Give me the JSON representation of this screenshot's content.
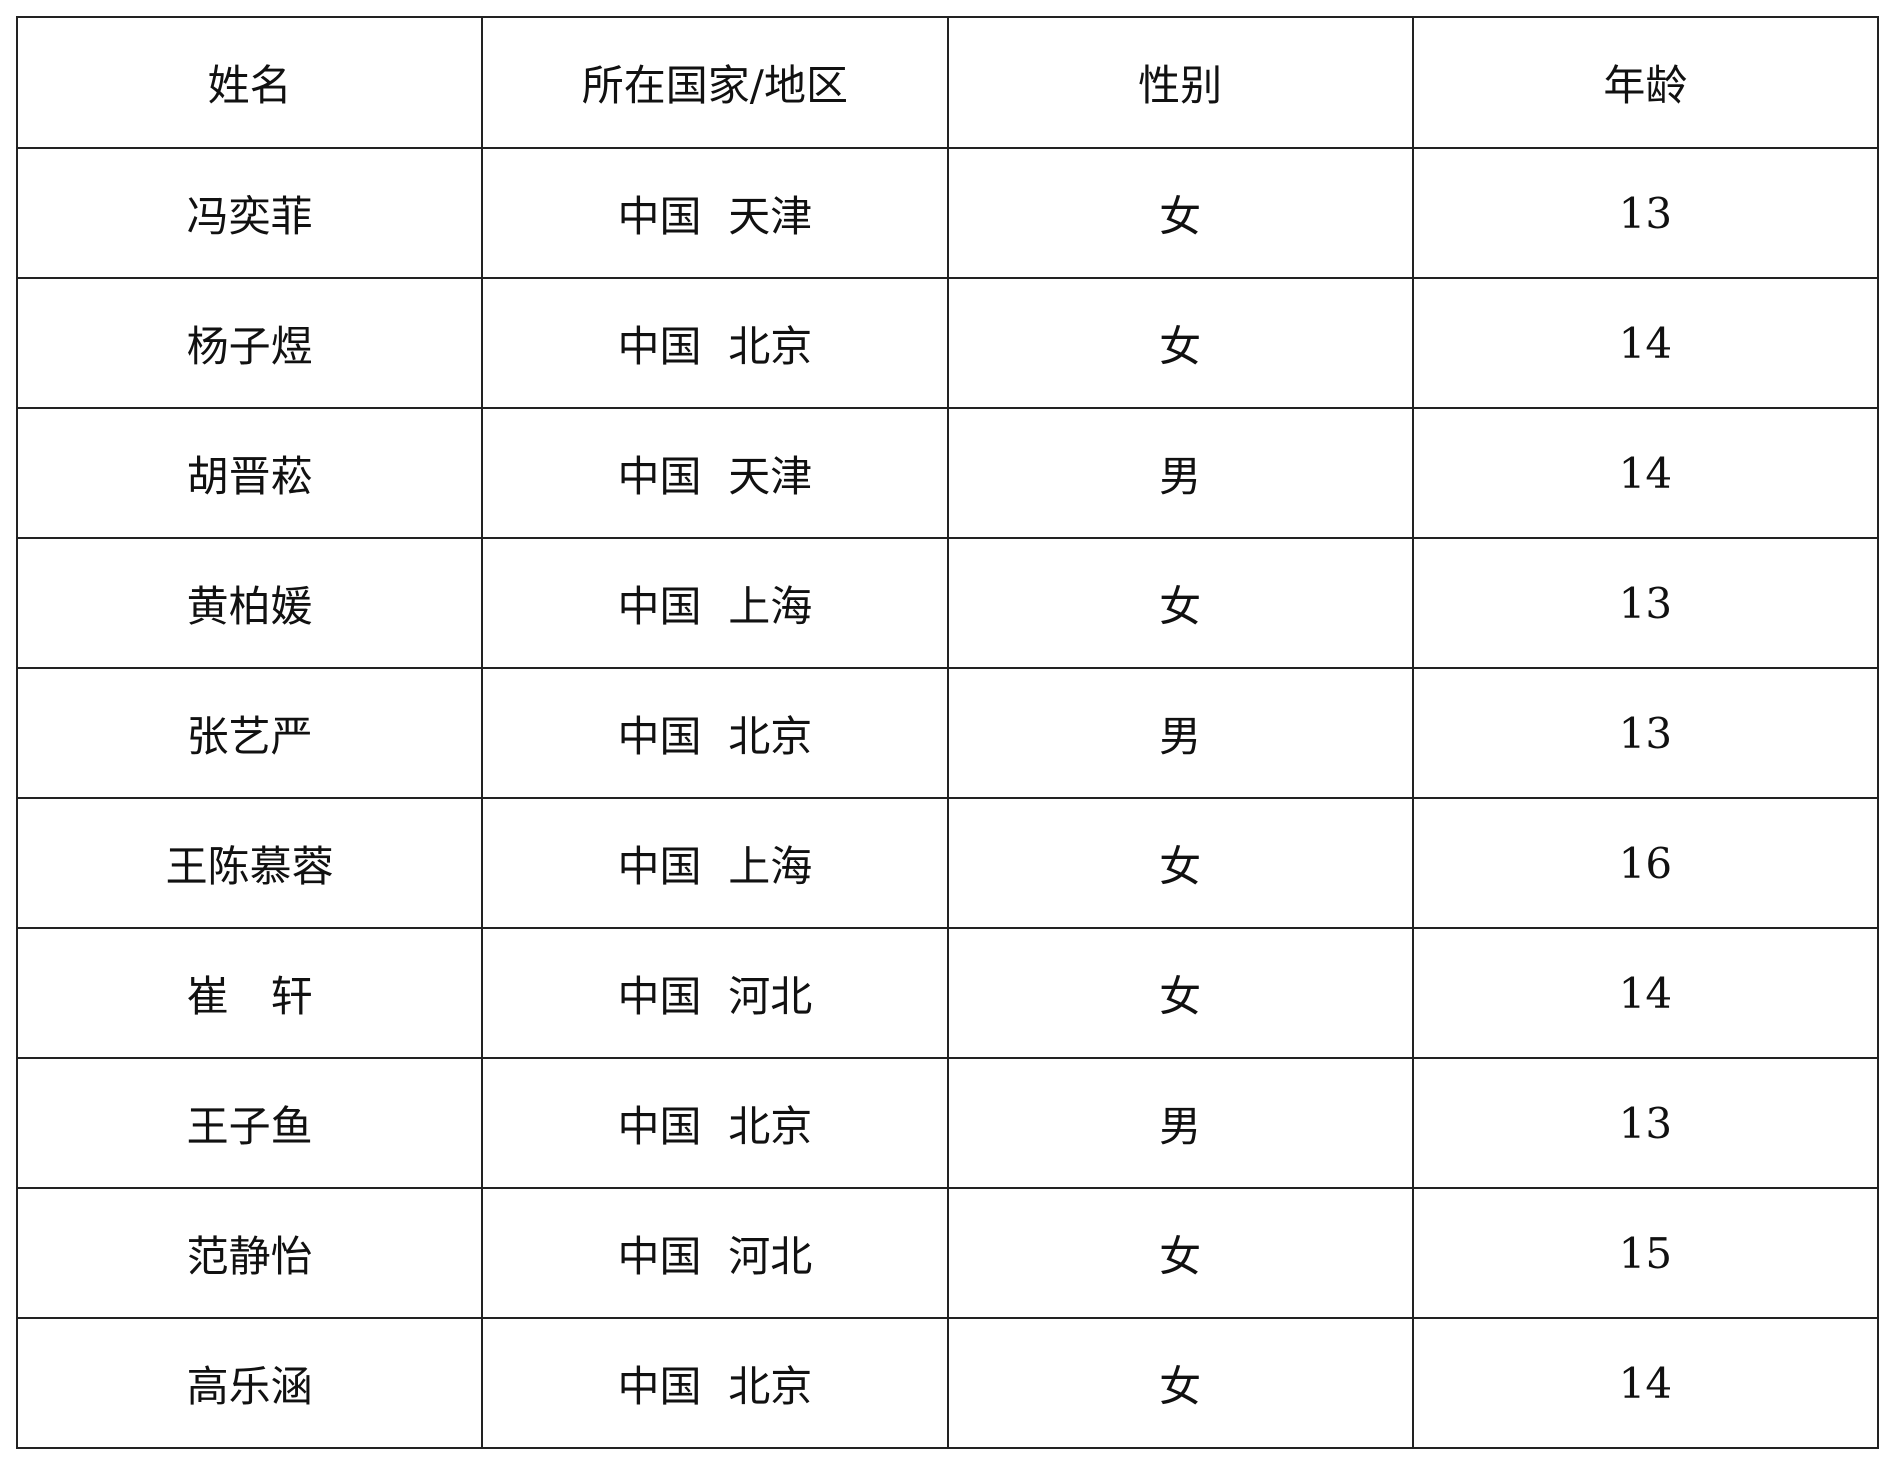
{
  "table": {
    "headers": [
      "姓名",
      "所在国家/地区",
      "性别",
      "年龄"
    ],
    "rows": [
      {
        "name": "冯奕菲",
        "location": "中国  天津",
        "gender": "女",
        "age": "13"
      },
      {
        "name": "杨子煜",
        "location": "中国  北京",
        "gender": "女",
        "age": "14"
      },
      {
        "name": "胡晋菘",
        "location": "中国  天津",
        "gender": "男",
        "age": "14"
      },
      {
        "name": "黄柏媛",
        "location": "中国  上海",
        "gender": "女",
        "age": "13"
      },
      {
        "name": "张艺严",
        "location": "中国  北京",
        "gender": "男",
        "age": "13"
      },
      {
        "name": "王陈慕蓉",
        "location": "中国  上海",
        "gender": "女",
        "age": "16"
      },
      {
        "name": "崔　轩",
        "location": "中国  河北",
        "gender": "女",
        "age": "14"
      },
      {
        "name": "王子鱼",
        "location": "中国  北京",
        "gender": "男",
        "age": "13"
      },
      {
        "name": "范静怡",
        "location": "中国  河北",
        "gender": "女",
        "age": "15"
      },
      {
        "name": "高乐涵",
        "location": "中国  北京",
        "gender": "女",
        "age": "14"
      }
    ]
  }
}
